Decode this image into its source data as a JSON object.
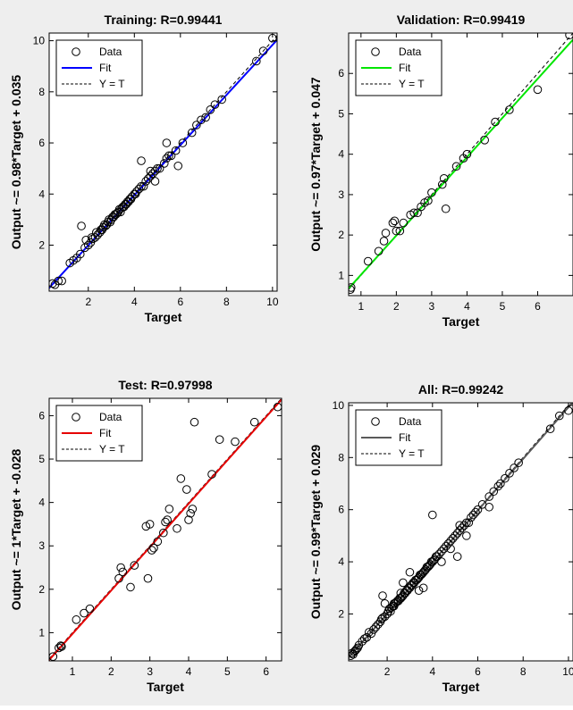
{
  "figure": {
    "background": "#eeeeee"
  },
  "chart_data": [
    {
      "type": "scatter",
      "title": "Training: R=0.99441",
      "xlabel": "Target",
      "ylabel": "Output ~= 0.98*Target + 0.035",
      "xlim": [
        0.3,
        10.2
      ],
      "ylim": [
        0.2,
        10.3
      ],
      "xticks": [
        2,
        4,
        6,
        8,
        10
      ],
      "yticks": [
        2,
        4,
        6,
        8,
        10
      ],
      "fit_color": "#0000ff",
      "fit": {
        "slope": 0.98,
        "intercept": 0.035
      },
      "legend": [
        "Data",
        "Fit",
        "Y = T"
      ],
      "legend_position": "top-left",
      "grid": false,
      "series": [
        {
          "name": "Data",
          "x": [
            0.45,
            0.55,
            0.7,
            0.85,
            1.2,
            1.35,
            1.5,
            1.65,
            1.7,
            1.85,
            1.9,
            2.0,
            2.1,
            2.15,
            2.2,
            2.3,
            2.35,
            2.4,
            2.5,
            2.55,
            2.6,
            2.65,
            2.7,
            2.75,
            2.8,
            2.85,
            2.9,
            2.95,
            3.0,
            3.05,
            3.1,
            3.15,
            3.2,
            3.25,
            3.3,
            3.35,
            3.4,
            3.45,
            3.5,
            3.55,
            3.6,
            3.65,
            3.7,
            3.75,
            3.8,
            3.85,
            3.9,
            4.0,
            4.05,
            4.1,
            4.2,
            4.3,
            4.4,
            4.5,
            4.6,
            4.7,
            4.8,
            4.9,
            5.0,
            5.1,
            5.3,
            5.4,
            5.5,
            5.6,
            5.8,
            6.1,
            6.5,
            6.7,
            6.9,
            7.1,
            7.3,
            7.5,
            7.8,
            4.3,
            4.9,
            5.4,
            4.7,
            5.9,
            9.3,
            9.6,
            10.0
          ],
          "y": [
            0.5,
            0.45,
            0.6,
            0.6,
            1.3,
            1.4,
            1.5,
            1.65,
            2.75,
            1.9,
            2.2,
            2.0,
            2.1,
            2.3,
            2.25,
            2.3,
            2.5,
            2.4,
            2.5,
            2.6,
            2.6,
            2.7,
            2.8,
            2.75,
            2.8,
            2.9,
            3.0,
            2.9,
            3.0,
            3.1,
            3.1,
            3.2,
            3.2,
            3.25,
            3.3,
            3.4,
            3.3,
            3.45,
            3.5,
            3.5,
            3.6,
            3.6,
            3.7,
            3.7,
            3.8,
            3.8,
            3.9,
            4.0,
            4.0,
            4.1,
            4.2,
            4.3,
            4.3,
            4.5,
            4.6,
            4.7,
            4.8,
            4.9,
            5.0,
            5.0,
            5.2,
            5.4,
            5.5,
            5.5,
            5.7,
            6.0,
            6.4,
            6.7,
            6.9,
            7.0,
            7.3,
            7.5,
            7.7,
            5.3,
            4.5,
            6.0,
            4.9,
            5.1,
            9.2,
            9.6,
            10.1
          ]
        }
      ]
    },
    {
      "type": "scatter",
      "title": "Validation: R=0.99419",
      "xlabel": "Target",
      "ylabel": "Output ~= 0.97*Target + 0.047",
      "xlim": [
        0.65,
        7.0
      ],
      "ylim": [
        0.5,
        7.0
      ],
      "xticks": [
        1,
        2,
        3,
        4,
        5,
        6
      ],
      "yticks": [
        1,
        2,
        3,
        4,
        5,
        6
      ],
      "fit_color": "#00e600",
      "fit": {
        "slope": 0.97,
        "intercept": 0.047
      },
      "legend": [
        "Data",
        "Fit",
        "Y = T"
      ],
      "legend_position": "top-left",
      "grid": false,
      "series": [
        {
          "name": "Data",
          "x": [
            0.7,
            0.72,
            1.2,
            1.5,
            1.65,
            1.7,
            1.9,
            1.95,
            2.0,
            2.1,
            2.2,
            2.4,
            2.5,
            2.6,
            2.7,
            2.8,
            2.9,
            3.0,
            3.3,
            3.35,
            3.4,
            3.7,
            3.9,
            4.0,
            4.5,
            4.8,
            5.2,
            6.0,
            6.9
          ],
          "y": [
            0.65,
            0.7,
            1.35,
            1.6,
            1.85,
            2.05,
            2.3,
            2.35,
            2.1,
            2.1,
            2.3,
            2.5,
            2.55,
            2.55,
            2.7,
            2.8,
            2.85,
            3.05,
            3.25,
            3.4,
            2.65,
            3.7,
            3.9,
            4.0,
            4.35,
            4.8,
            5.1,
            5.6,
            6.95
          ]
        }
      ]
    },
    {
      "type": "scatter",
      "title": "Test: R=0.97998",
      "xlabel": "Target",
      "ylabel": "Output ~= 1*Target + -0.028",
      "xlim": [
        0.4,
        6.4
      ],
      "ylim": [
        0.35,
        6.4
      ],
      "xticks": [
        1,
        2,
        3,
        4,
        5,
        6
      ],
      "yticks": [
        1,
        2,
        3,
        4,
        5,
        6
      ],
      "fit_color": "#e60000",
      "fit": {
        "slope": 1.0,
        "intercept": -0.028
      },
      "legend": [
        "Data",
        "Fit",
        "Y = T"
      ],
      "legend_position": "top-left",
      "grid": false,
      "series": [
        {
          "name": "Data",
          "x": [
            0.5,
            0.65,
            0.7,
            0.72,
            1.1,
            1.3,
            1.45,
            2.2,
            2.25,
            2.3,
            2.5,
            2.6,
            2.9,
            2.95,
            3.0,
            3.05,
            3.1,
            3.2,
            3.35,
            3.4,
            3.45,
            3.5,
            3.7,
            3.8,
            3.95,
            4.0,
            4.05,
            4.1,
            4.15,
            4.6,
            4.8,
            5.2,
            5.7,
            6.3
          ],
          "y": [
            0.45,
            0.65,
            0.7,
            0.68,
            1.3,
            1.45,
            1.55,
            2.25,
            2.5,
            2.4,
            2.05,
            2.55,
            3.45,
            2.25,
            3.5,
            2.9,
            2.95,
            3.1,
            3.3,
            3.55,
            3.6,
            3.85,
            3.4,
            4.55,
            4.3,
            3.6,
            3.75,
            3.85,
            5.85,
            4.65,
            5.45,
            5.4,
            5.85,
            6.2
          ]
        }
      ]
    },
    {
      "type": "scatter",
      "title": "All: R=0.99242",
      "xlabel": "Target",
      "ylabel": "Output ~= 0.99*Target + 0.029",
      "xlim": [
        0.3,
        10.2
      ],
      "ylim": [
        0.2,
        10.1
      ],
      "xticks": [
        2,
        4,
        6,
        8,
        10
      ],
      "yticks": [
        2,
        4,
        6,
        8,
        10
      ],
      "fit_color": "#5a5a5a",
      "fit": {
        "slope": 0.99,
        "intercept": 0.029
      },
      "legend": [
        "Data",
        "Fit",
        "Y = T"
      ],
      "legend_position": "top-left",
      "grid": false,
      "series": [
        {
          "name": "Data",
          "x": [
            0.4,
            0.45,
            0.5,
            0.55,
            0.6,
            0.65,
            0.7,
            0.75,
            0.9,
            1.0,
            1.1,
            1.2,
            1.3,
            1.4,
            1.5,
            1.6,
            1.7,
            1.75,
            1.8,
            1.9,
            2.0,
            2.05,
            2.1,
            2.15,
            2.2,
            2.25,
            2.3,
            2.35,
            2.4,
            2.45,
            2.5,
            2.55,
            2.6,
            2.65,
            2.7,
            2.75,
            2.8,
            2.85,
            2.9,
            2.95,
            3.0,
            3.05,
            3.1,
            3.15,
            3.2,
            3.25,
            3.3,
            3.35,
            3.4,
            3.45,
            3.5,
            3.55,
            3.6,
            3.65,
            3.7,
            3.75,
            3.8,
            3.85,
            3.9,
            3.95,
            4.0,
            4.05,
            4.1,
            4.15,
            4.2,
            4.3,
            4.4,
            4.5,
            4.6,
            4.7,
            4.8,
            4.9,
            5.0,
            5.1,
            5.2,
            5.3,
            5.4,
            5.5,
            5.6,
            5.7,
            5.8,
            5.9,
            6.0,
            6.2,
            6.5,
            6.7,
            6.9,
            7.0,
            7.2,
            7.4,
            7.6,
            7.8,
            4.0,
            4.8,
            5.1,
            5.2,
            5.5,
            6.5,
            1.8,
            2.3,
            3.0,
            9.2,
            9.6,
            10.0,
            3.4,
            2.7,
            3.6,
            4.4,
            1.9,
            2.6
          ],
          "y": [
            0.4,
            0.5,
            0.45,
            0.55,
            0.6,
            0.65,
            0.7,
            0.8,
            0.95,
            1.05,
            1.1,
            1.3,
            1.25,
            1.4,
            1.5,
            1.6,
            1.7,
            1.8,
            1.85,
            1.9,
            2.0,
            2.1,
            2.2,
            2.1,
            2.25,
            2.3,
            2.3,
            2.4,
            2.45,
            2.5,
            2.5,
            2.6,
            2.6,
            2.65,
            2.7,
            2.8,
            2.8,
            2.9,
            2.9,
            3.0,
            3.0,
            3.1,
            3.1,
            3.2,
            3.2,
            3.3,
            3.3,
            3.35,
            3.4,
            3.5,
            3.5,
            3.55,
            3.6,
            3.65,
            3.7,
            3.8,
            3.8,
            3.85,
            3.9,
            4.0,
            4.0,
            4.05,
            4.1,
            4.2,
            4.2,
            4.3,
            4.4,
            4.5,
            4.6,
            4.7,
            4.8,
            4.9,
            5.0,
            5.1,
            5.2,
            5.3,
            5.4,
            5.5,
            5.5,
            5.7,
            5.8,
            5.9,
            6.0,
            6.2,
            6.5,
            6.7,
            6.9,
            7.0,
            7.2,
            7.4,
            7.6,
            7.8,
            5.8,
            4.5,
            4.2,
            5.4,
            5.0,
            6.1,
            2.7,
            2.4,
            3.6,
            9.1,
            9.6,
            9.8,
            2.9,
            3.2,
            3.0,
            4.0,
            2.4,
            2.8
          ]
        }
      ]
    }
  ]
}
